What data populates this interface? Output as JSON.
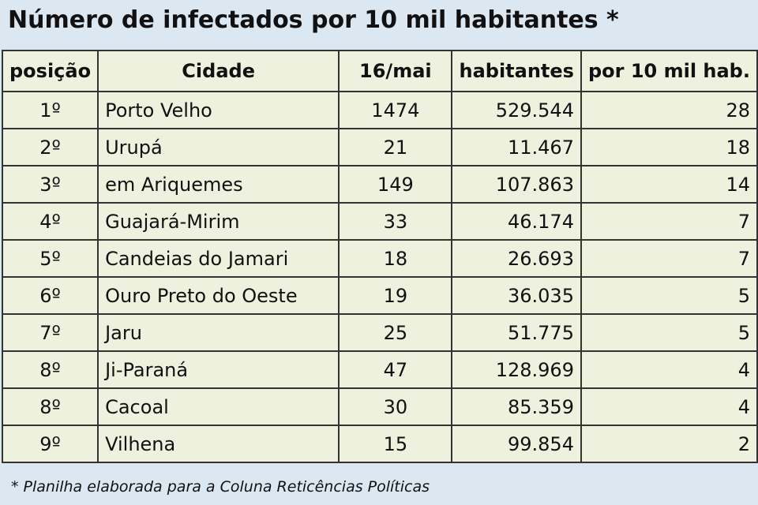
{
  "header": {
    "title": "Número de infectados por 10 mil habitantes *"
  },
  "table": {
    "columns": [
      "posição",
      "Cidade",
      "16/mai",
      "habitantes",
      "por 10 mil hab."
    ],
    "rows": [
      [
        "1º",
        "Porto Velho",
        "1474",
        "529.544",
        "28"
      ],
      [
        "2º",
        "Urupá",
        "21",
        "11.467",
        "18"
      ],
      [
        "3º",
        "em Ariquemes",
        "149",
        "107.863",
        "14"
      ],
      [
        "4º",
        "Guajará-Mirim",
        "33",
        "46.174",
        "7"
      ],
      [
        "5º",
        "Candeias do Jamari",
        "18",
        "26.693",
        "7"
      ],
      [
        "6º",
        "Ouro Preto do Oeste",
        "19",
        "36.035",
        "5"
      ],
      [
        "7º",
        "Jaru",
        "25",
        "51.775",
        "5"
      ],
      [
        "8º",
        "Ji-Paraná",
        "47",
        "128.969",
        "4"
      ],
      [
        "8º",
        "Cacoal",
        "30",
        "85.359",
        "4"
      ],
      [
        "9º",
        "Vilhena",
        "15",
        "99.854",
        "2"
      ]
    ]
  },
  "footer": {
    "note": "* Planilha elaborada para a Coluna Reticências Políticas"
  }
}
